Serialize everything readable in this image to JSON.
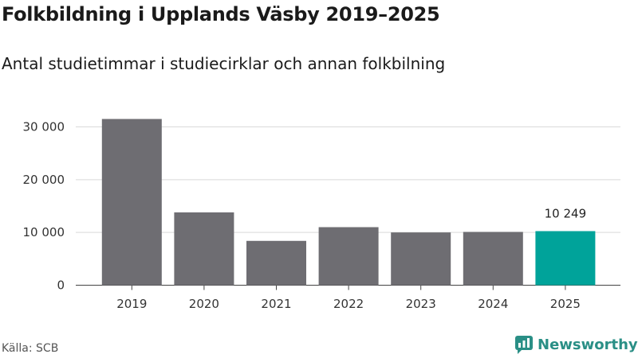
{
  "title": "Folkbildning i Upplands Väsby 2019–2025",
  "subtitle": "Antal studietimmar i studiecirklar och annan folkbilning",
  "source": "Källa: SCB",
  "brand": "Newsworthy",
  "colors": {
    "bar": "#6e6d72",
    "highlight": "#00a39a",
    "grid": "#d9d9d9",
    "brand": "#2a8f86"
  },
  "chart_data": {
    "type": "bar",
    "categories": [
      "2019",
      "2020",
      "2021",
      "2022",
      "2023",
      "2024",
      "2025"
    ],
    "values": [
      31500,
      13800,
      8400,
      11000,
      10000,
      10100,
      10249
    ],
    "highlight_index": 6,
    "data_labels": [
      {
        "index": 6,
        "text": "10 249"
      }
    ],
    "yticks": [
      0,
      10000,
      20000,
      30000
    ],
    "ytick_labels": [
      "0",
      "10 000",
      "20 000",
      "30 000"
    ],
    "ylim": [
      0,
      32000
    ],
    "grid": true,
    "title": "Folkbildning i Upplands Väsby 2019–2025",
    "xlabel": "",
    "ylabel": ""
  }
}
